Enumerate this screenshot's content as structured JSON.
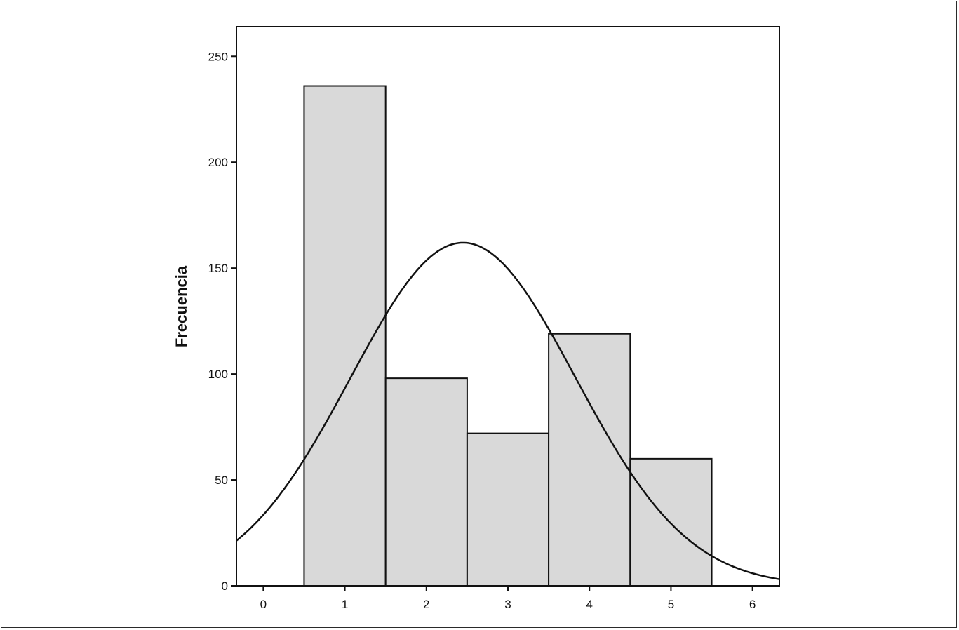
{
  "chart_data": {
    "type": "bar",
    "title": "",
    "xlabel": "",
    "ylabel": "Frecuencia",
    "bin_width": 1,
    "categories": [
      "1",
      "2",
      "3",
      "4",
      "5"
    ],
    "bin_centers": [
      1,
      2,
      3,
      4,
      5
    ],
    "values": [
      236,
      98,
      72,
      119,
      60
    ],
    "xlim": [
      -0.33,
      6.33
    ],
    "ylim": [
      0,
      264
    ],
    "x_ticks": [
      "0",
      "1",
      "2",
      "3",
      "4",
      "5",
      "6"
    ],
    "y_ticks": [
      "0",
      "50",
      "100",
      "150",
      "200",
      "250"
    ],
    "normal_curve": {
      "mean": 2.45,
      "sd": 1.38,
      "peak": 162
    },
    "bar_fill": "#d9d9d9",
    "line_color": "#111111",
    "grid": false,
    "legend": "none"
  }
}
